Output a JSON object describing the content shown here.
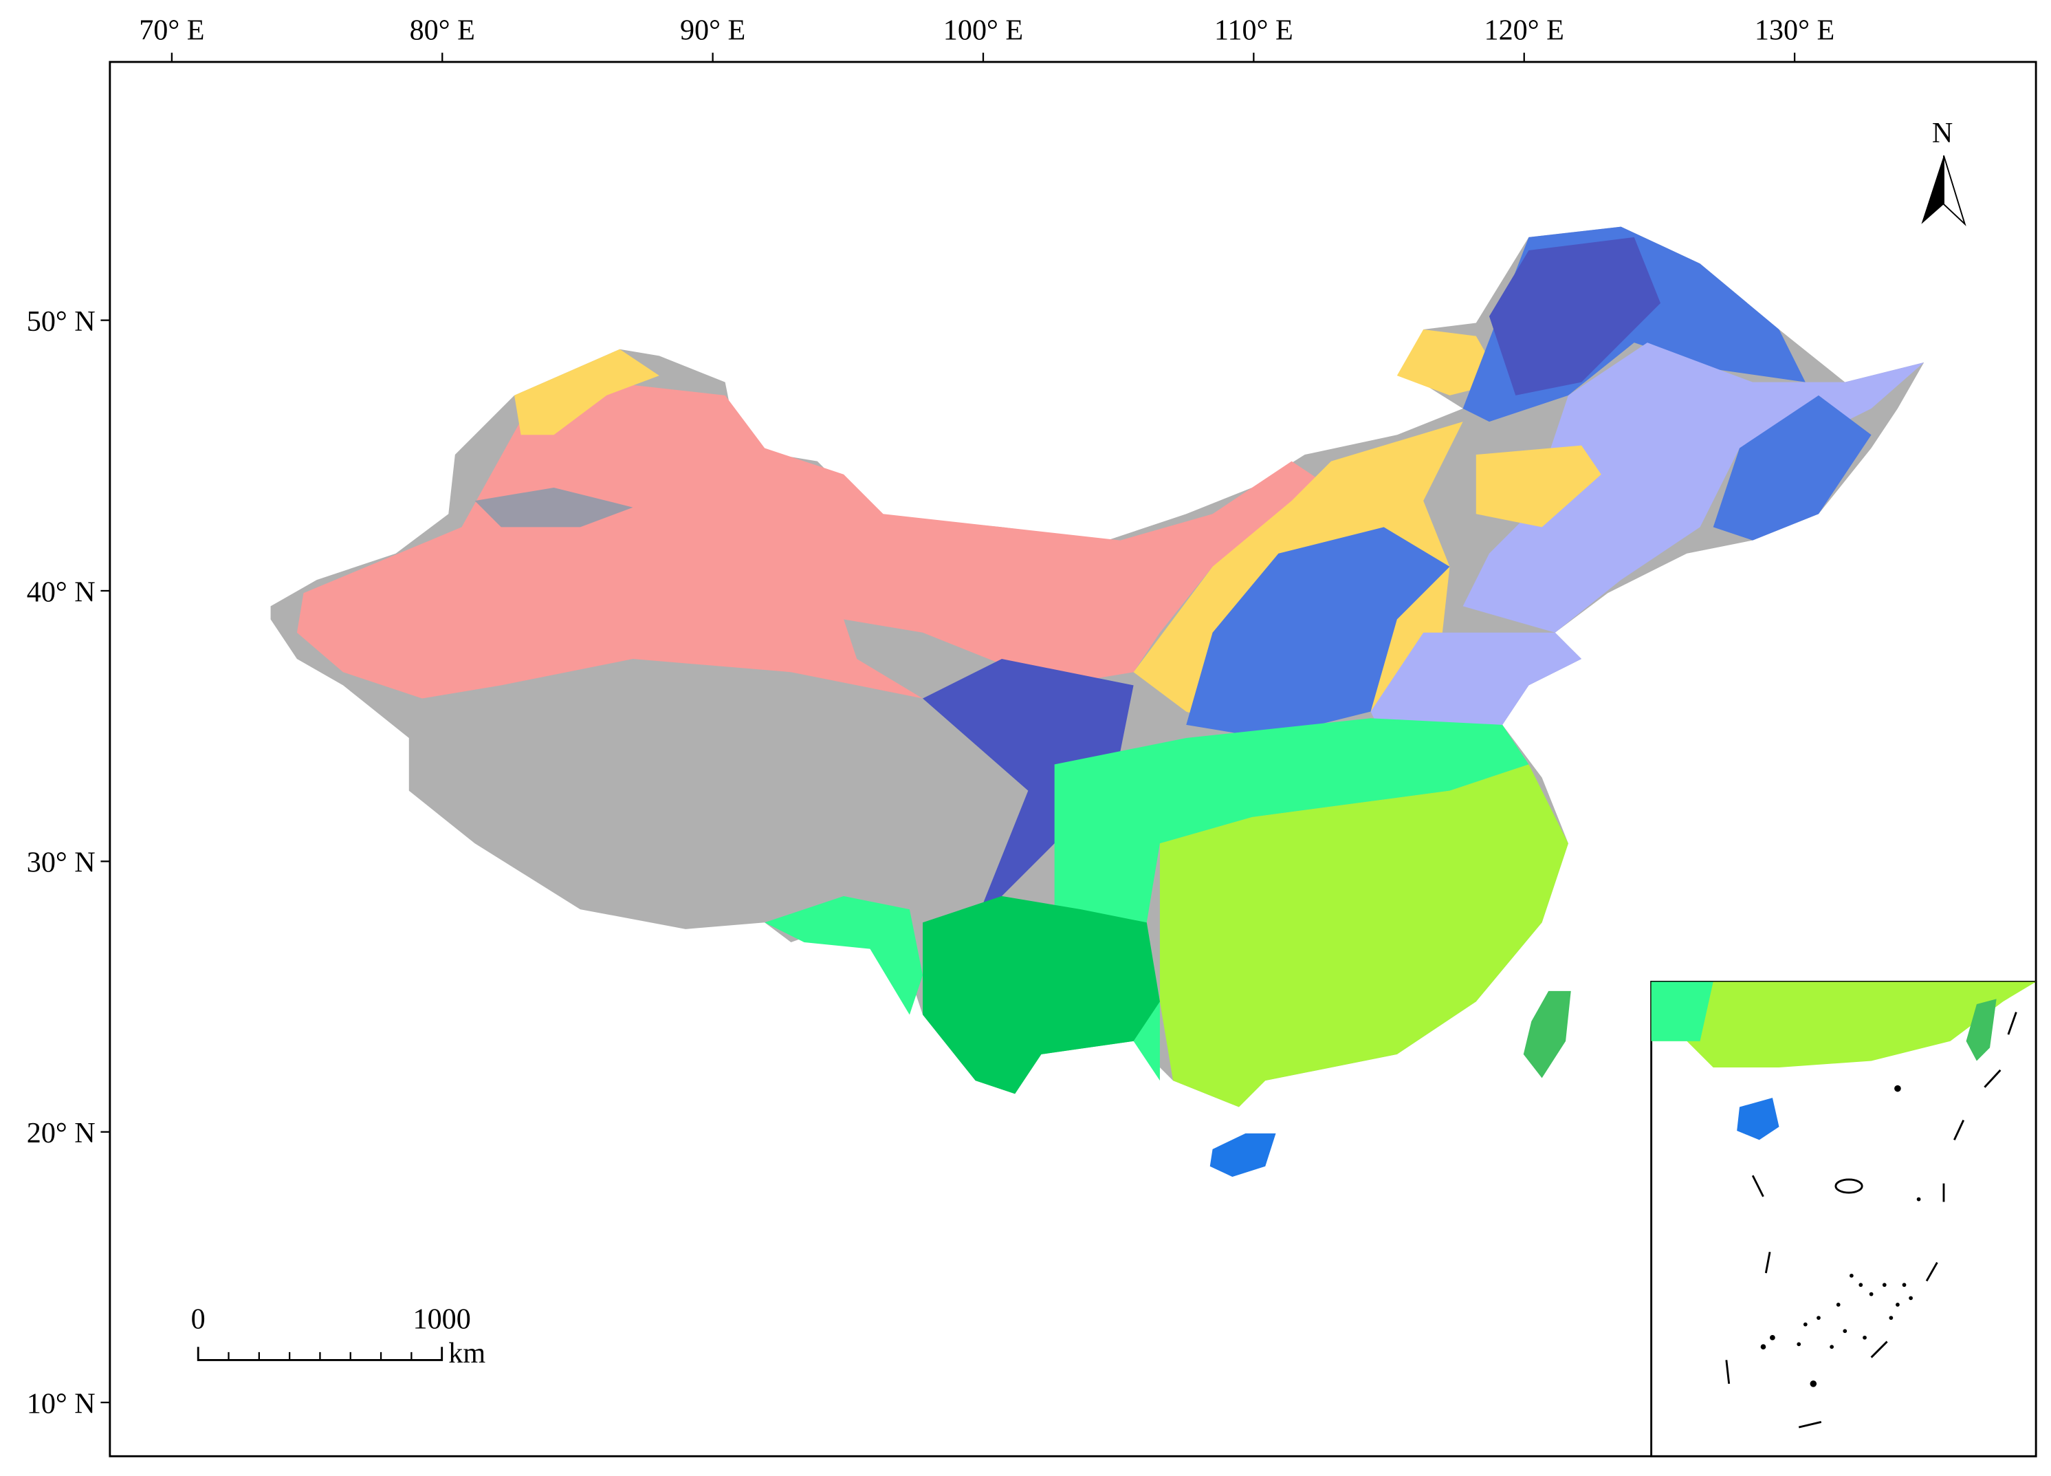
{
  "map": {
    "longitude_labels": [
      "70° E",
      "80° E",
      "90° E",
      "100° E",
      "110° E",
      "120° E",
      "130° E"
    ],
    "latitude_labels": [
      "50° N",
      "40° N",
      "30° N",
      "20° N",
      "10° N"
    ],
    "north_label": "N",
    "scale_bar": {
      "start_label": "0",
      "end_label": "1000",
      "unit": "km"
    }
  }
}
